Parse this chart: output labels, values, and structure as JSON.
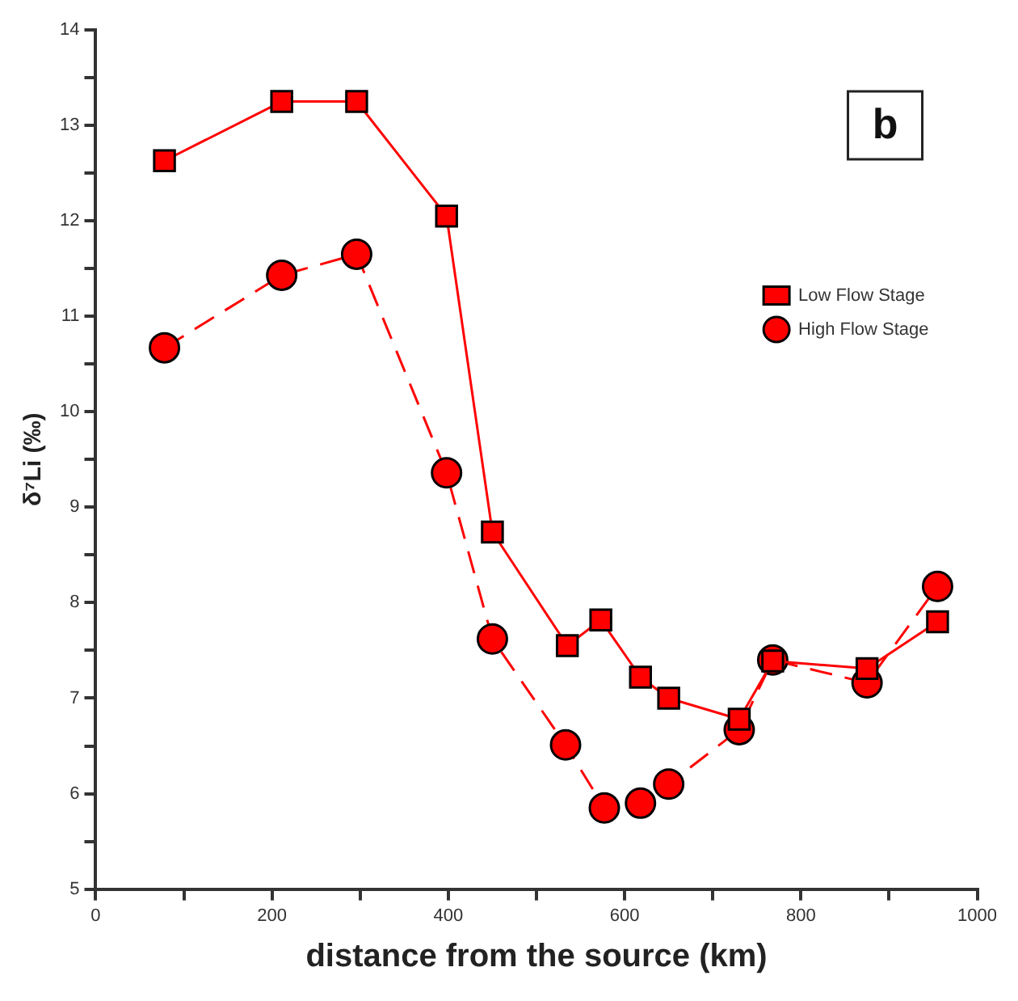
{
  "chart_data": {
    "type": "line",
    "xlabel": "distance from the source (km)",
    "ylabel": "δ⁷Li (‰)",
    "annotations": [
      "b"
    ],
    "legend": "right",
    "xlim": [
      0,
      1000
    ],
    "ylim": [
      5,
      14
    ],
    "xticks": [
      0,
      {
        "value": 100,
        "label": null
      },
      200,
      {
        "value": 300,
        "label": null
      },
      400,
      {
        "value": 500,
        "label": null
      },
      600,
      {
        "value": 700,
        "label": null
      },
      800,
      {
        "value": 900,
        "label": null
      },
      1000
    ],
    "yticks": [
      5,
      {
        "value": 5.5,
        "label": null
      },
      6,
      {
        "value": 6.5,
        "label": null
      },
      7,
      {
        "value": 7.5,
        "label": null
      },
      8,
      {
        "value": 8.5,
        "label": null
      },
      9,
      {
        "value": 9.5,
        "label": null
      },
      10,
      {
        "value": 10.5,
        "label": null
      },
      11,
      {
        "value": 11.5,
        "label": null
      },
      12,
      {
        "value": 12.5,
        "label": null
      },
      13,
      {
        "value": 13.5,
        "label": null
      },
      14
    ],
    "series": [
      {
        "name": "Low Flow Stage",
        "color": "#ff0000",
        "marker": "square",
        "line_style": "solid",
        "x": [
          78,
          211,
          296,
          398,
          450,
          535,
          573,
          618,
          650,
          730,
          768,
          875,
          955
        ],
        "values": [
          12.63,
          13.25,
          13.25,
          12.05,
          8.74,
          7.55,
          7.82,
          7.22,
          7.0,
          6.78,
          7.39,
          7.31,
          7.8
        ]
      },
      {
        "name": "High Flow Stage",
        "color": "#ff0000",
        "marker": "circle",
        "line_style": "dashed",
        "x": [
          78,
          211,
          296,
          398,
          450,
          533,
          577,
          618,
          650,
          730,
          768,
          875,
          955
        ],
        "values": [
          10.67,
          11.43,
          11.65,
          9.36,
          7.62,
          6.51,
          5.85,
          5.9,
          6.1,
          6.67,
          7.4,
          7.16,
          8.17
        ]
      }
    ]
  }
}
